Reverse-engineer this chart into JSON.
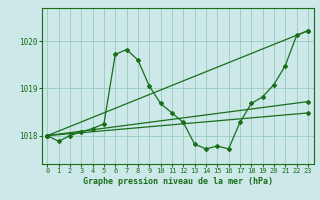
{
  "title": "Graphe pression niveau de la mer (hPa)",
  "background_color": "#cce8e8",
  "grid_color": "#99ccbb",
  "line_color": "#1a6e1a",
  "xlim": [
    -0.5,
    23.5
  ],
  "ylim": [
    1017.4,
    1020.7
  ],
  "yticks": [
    1018,
    1019,
    1020
  ],
  "xticks": [
    0,
    1,
    2,
    3,
    4,
    5,
    6,
    7,
    8,
    9,
    10,
    11,
    12,
    13,
    14,
    15,
    16,
    17,
    18,
    19,
    20,
    21,
    22,
    23
  ],
  "series1_x": [
    0,
    1,
    2,
    3,
    4,
    5,
    6,
    7,
    8,
    9,
    10,
    11,
    12,
    13,
    14,
    15,
    16,
    17,
    18,
    19,
    20,
    21,
    22,
    23
  ],
  "series1_y": [
    1018.0,
    1017.88,
    1018.0,
    1018.08,
    1018.15,
    1018.25,
    1019.72,
    1019.82,
    1019.6,
    1019.05,
    1018.68,
    1018.48,
    1018.28,
    1017.82,
    1017.72,
    1017.78,
    1017.72,
    1018.28,
    1018.68,
    1018.82,
    1019.08,
    1019.48,
    1020.12,
    1020.22
  ],
  "series2_x": [
    0,
    23
  ],
  "series2_y": [
    1018.0,
    1020.22
  ],
  "series3_x": [
    0,
    23
  ],
  "series3_y": [
    1018.0,
    1018.72
  ],
  "series4_x": [
    0,
    23
  ],
  "series4_y": [
    1018.0,
    1018.48
  ]
}
